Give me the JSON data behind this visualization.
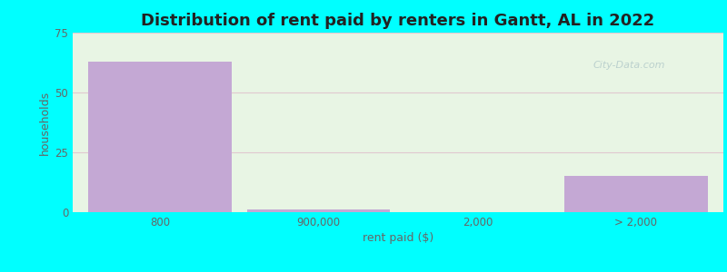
{
  "title": "Distribution of rent paid by renters in Gantt, AL in 2022",
  "tick_labels": [
    "800",
    "900,000",
    "2,000",
    "> 2,000"
  ],
  "values": [
    63,
    1,
    0,
    15
  ],
  "bar_color": "#c4a8d4",
  "bg_color_plot": "#e8f5e4",
  "outer_bg_color": "#00ffff",
  "xlabel": "rent paid ($)",
  "ylabel": "households",
  "ylim": [
    0,
    75
  ],
  "yticks": [
    0,
    25,
    50,
    75
  ],
  "title_fontsize": 13,
  "axis_label_fontsize": 9,
  "tick_fontsize": 8.5,
  "bar_width": 0.9,
  "watermark": "City-Data.com"
}
